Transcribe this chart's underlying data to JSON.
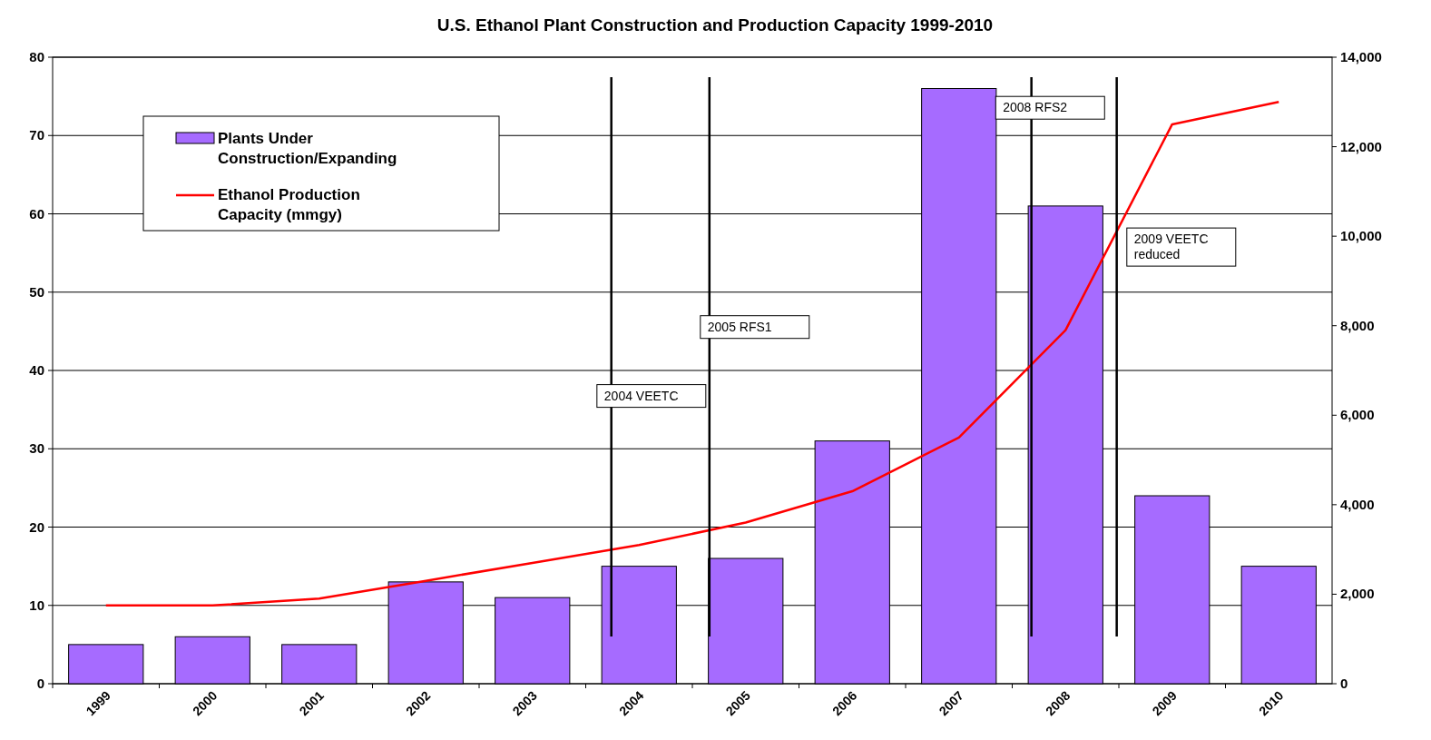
{
  "chart_data": {
    "type": "bar",
    "title": "U.S. Ethanol Plant Construction and Production Capacity 1999-2010",
    "categories": [
      "1999",
      "2000",
      "2001",
      "2002",
      "2003",
      "2004",
      "2005",
      "2006",
      "2007",
      "2008",
      "2009",
      "2010"
    ],
    "series": [
      {
        "name": "Plants Under Construction/Expanding",
        "type": "bar",
        "color": "#a66bff",
        "values": [
          5,
          6,
          5,
          13,
          11,
          15,
          16,
          31,
          76,
          61,
          24,
          15
        ]
      },
      {
        "name": "Ethanol Production Capacity (mmgy)",
        "type": "line",
        "axis": "y2",
        "color": "#ff0000",
        "values": [
          1750,
          1750,
          1900,
          2300,
          2700,
          3100,
          3600,
          4300,
          5500,
          7900,
          12500,
          13000
        ]
      }
    ],
    "ylim": [
      0,
      80
    ],
    "yticks": [
      0,
      10,
      20,
      30,
      40,
      50,
      60,
      70,
      80
    ],
    "y2lim": [
      0,
      14000
    ],
    "y2ticks": [
      {
        "value": 0,
        "label": "0"
      },
      {
        "value": 2000,
        "label": "2,000"
      },
      {
        "value": 4000,
        "label": "4,000"
      },
      {
        "value": 6000,
        "label": "6,000"
      },
      {
        "value": 8000,
        "label": "8,000"
      },
      {
        "value": 10000,
        "label": "10,000"
      },
      {
        "value": 12000,
        "label": "12,000"
      },
      {
        "value": 14000,
        "label": "14,000"
      }
    ],
    "ref_lines": [
      {
        "axis": "x",
        "value": "2004",
        "label": "2004 VEETC",
        "color": "#000000"
      },
      {
        "axis": "x",
        "value": "2005",
        "label": "2005 RFS1",
        "color": "#000000"
      },
      {
        "axis": "x",
        "value": "2008",
        "label": "2008 RFS2",
        "color": "#000000"
      },
      {
        "axis": "x",
        "value": "2009",
        "label": "2009 VEETC reduced",
        "color": "#000000"
      }
    ],
    "grid": "y",
    "legend": "top left",
    "marker": "none",
    "line_style": "solid"
  }
}
